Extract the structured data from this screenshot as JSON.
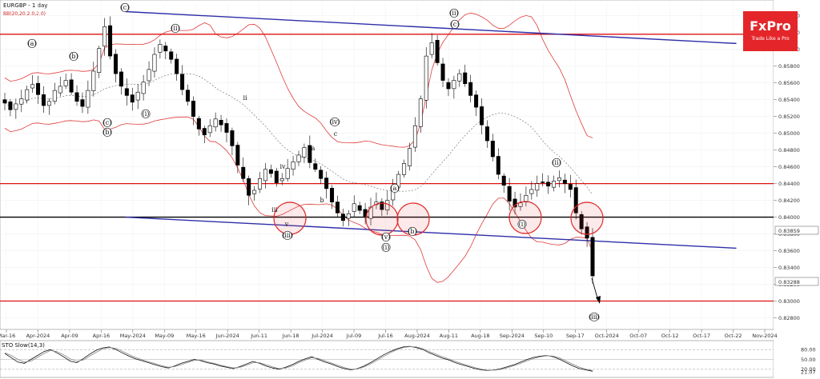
{
  "header": {
    "symbol": "EURGBP - 1 day",
    "indicator": "BB(20,20.2.0,2.0)"
  },
  "logo": {
    "name": "FxPro",
    "tagline": "Trade Like a Pro",
    "color": "#e4262a"
  },
  "colors": {
    "bullish": "#ffffff",
    "bearish": "#000000",
    "bollinger": "#e03a3a",
    "middle_band": "#666666",
    "channel": "#2e2ea8",
    "level_red": "#e01010",
    "level_black": "#000000"
  },
  "chart_data": [
    {
      "type": "candlestick",
      "title": "EURGBP - 1 day",
      "overlays": [
        "BB(20,20.2.0,2.0)"
      ],
      "ylim": [
        0.827,
        0.8655
      ],
      "y_ticks": [
        "0.86400",
        "0.86200",
        "0.86000",
        "0.85800",
        "0.85600",
        "0.85400",
        "0.85200",
        "0.85000",
        "0.84800",
        "0.84600",
        "0.84400",
        "0.84200",
        "0.84000",
        "0.83800",
        "0.83600",
        "0.83400",
        "0.83200",
        "0.83000",
        "0.82800"
      ],
      "current_price_label": "0.83859",
      "last_price_label": "0.83288",
      "x_ticks": [
        "Mar-16",
        "Apr-2024",
        "Apr-09",
        "Apr-16",
        "May-2024",
        "May-09",
        "May-16",
        "Jun-2024",
        "Jun-11",
        "Jun-18",
        "Jul-2024",
        "Jul-09",
        "Jul-16",
        "Aug-2024",
        "Aug-11",
        "Aug-18",
        "Sep-2024",
        "Sep-10",
        "Sep-17",
        "Oct-2024",
        "Oct-07",
        "Oct-12",
        "Oct-17",
        "Oct-22",
        "Nov-2024"
      ],
      "horizontal_levels": [
        {
          "price": 0.8618,
          "color": "red"
        },
        {
          "price": 0.844,
          "color": "red"
        },
        {
          "price": 0.84,
          "color": "black"
        },
        {
          "price": 0.83,
          "color": "red"
        }
      ],
      "channel_lines": [
        {
          "from_date": "Apr-16",
          "from_price": 0.8645,
          "to_date": "Oct-22",
          "to_price": 0.8607
        },
        {
          "from_date": "Apr-16",
          "from_price": 0.84,
          "to_date": "Oct-22",
          "to_price": 0.8363
        }
      ],
      "price_path": [
        0.8536,
        0.8528,
        0.8535,
        0.8541,
        0.8552,
        0.8558,
        0.8546,
        0.8533,
        0.8538,
        0.8551,
        0.8556,
        0.8563,
        0.8549,
        0.8538,
        0.8532,
        0.8551,
        0.8574,
        0.8601,
        0.8627,
        0.8592,
        0.8571,
        0.8556,
        0.8545,
        0.8537,
        0.8549,
        0.8561,
        0.8576,
        0.8594,
        0.8606,
        0.8598,
        0.8588,
        0.8571,
        0.8552,
        0.8538,
        0.852,
        0.8505,
        0.8498,
        0.8509,
        0.8517,
        0.851,
        0.8501,
        0.8485,
        0.8462,
        0.8446,
        0.8426,
        0.8432,
        0.8446,
        0.8457,
        0.8452,
        0.8441,
        0.8446,
        0.8458,
        0.8466,
        0.8474,
        0.8483,
        0.8465,
        0.8457,
        0.8446,
        0.8434,
        0.8418,
        0.8405,
        0.8396,
        0.8404,
        0.8416,
        0.8408,
        0.8401,
        0.8412,
        0.8418,
        0.8409,
        0.842,
        0.8436,
        0.8451,
        0.8464,
        0.8482,
        0.8509,
        0.8541,
        0.8592,
        0.8608,
        0.8584,
        0.8563,
        0.8553,
        0.8563,
        0.8571,
        0.8559,
        0.8545,
        0.8531,
        0.851,
        0.8491,
        0.8472,
        0.8451,
        0.8438,
        0.8419,
        0.8412,
        0.8417,
        0.8426,
        0.8433,
        0.844,
        0.8442,
        0.8437,
        0.8443,
        0.8447,
        0.844,
        0.8433,
        0.8405,
        0.8386,
        0.8375,
        0.833
      ],
      "wave_labels": [
        "(a)",
        "(b)",
        "(c)",
        "(b)",
        "(i)",
        "(ii)",
        "(c)",
        "a",
        "b",
        "c",
        "i",
        "ii",
        "iii",
        "iv",
        "v",
        "(iii)",
        "(iv)",
        "(a)",
        "(b)",
        "(v)",
        "(i)",
        "(ii)",
        "(c)",
        "(i)",
        "(ii)",
        "(iii)"
      ]
    },
    {
      "type": "line",
      "title": "STO Slow(14,3)",
      "ylim": [
        0,
        100
      ],
      "y_ticks": [
        "80.00",
        "50.00",
        "20.00"
      ],
      "y_marker": "21.07",
      "series": [
        {
          "name": "%K",
          "values": [
            68,
            55,
            42,
            38,
            50,
            62,
            74,
            80,
            70,
            58,
            45,
            40,
            52,
            66,
            78,
            85,
            88,
            80,
            70,
            60,
            52,
            46,
            40,
            34,
            28,
            24,
            30,
            38,
            44,
            50,
            46,
            40,
            36,
            30,
            26,
            22,
            28,
            36,
            44,
            38,
            30,
            24,
            20,
            26,
            34,
            44,
            52,
            58,
            50,
            42,
            36,
            28,
            22,
            18,
            22,
            30,
            40,
            52,
            64,
            74,
            82,
            88,
            90,
            86,
            80,
            70,
            62,
            54,
            48,
            40,
            34,
            28,
            22,
            18,
            16,
            18,
            22,
            28,
            34,
            42,
            50,
            56,
            60,
            62,
            58,
            50,
            40,
            30,
            22,
            18,
            14
          ]
        },
        {
          "name": "%D",
          "values": [
            70,
            62,
            50,
            42,
            45,
            56,
            68,
            77,
            74,
            64,
            52,
            44,
            48,
            60,
            72,
            82,
            86,
            84,
            75,
            65,
            56,
            49,
            43,
            37,
            31,
            26,
            28,
            34,
            41,
            47,
            48,
            43,
            38,
            33,
            28,
            24,
            26,
            32,
            40,
            40,
            34,
            27,
            22,
            24,
            30,
            40,
            48,
            55,
            53,
            46,
            39,
            32,
            25,
            20,
            21,
            27,
            36,
            47,
            59,
            70,
            79,
            86,
            89,
            88,
            83,
            74,
            66,
            58,
            51,
            44,
            37,
            31,
            25,
            20,
            17,
            17,
            20,
            25,
            31,
            38,
            46,
            53,
            58,
            61,
            60,
            54,
            45,
            35,
            26,
            20,
            16
          ]
        }
      ]
    }
  ]
}
